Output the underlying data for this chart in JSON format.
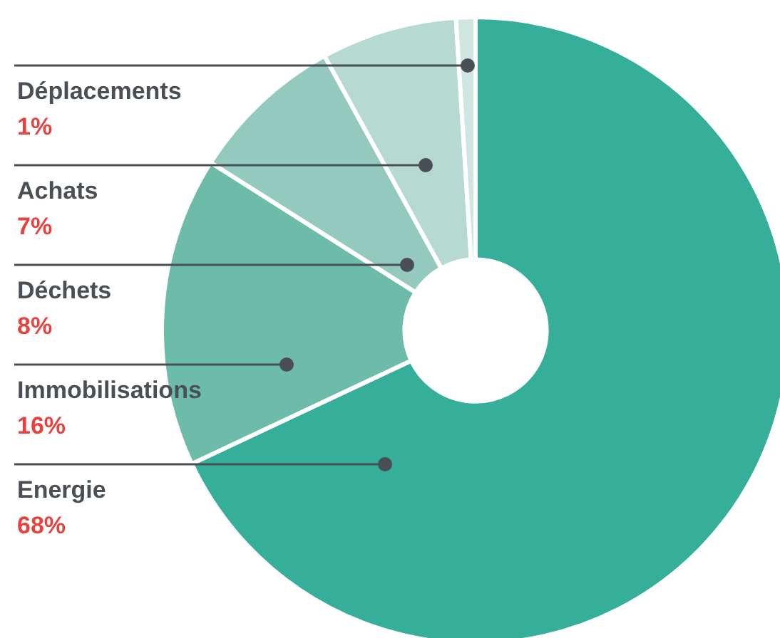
{
  "chart_data": {
    "type": "donut",
    "categories": [
      "Energie",
      "Immobilisations",
      "Déchets",
      "Achats",
      "Déplacements"
    ],
    "values": [
      68,
      16,
      8,
      7,
      1
    ],
    "value_labels": [
      "68%",
      "16%",
      "8%",
      "7%",
      "1%"
    ],
    "colors": [
      "#35ae9a",
      "#6dbba9",
      "#94c9bd",
      "#b6d9d1",
      "#cfe6e0"
    ]
  }
}
